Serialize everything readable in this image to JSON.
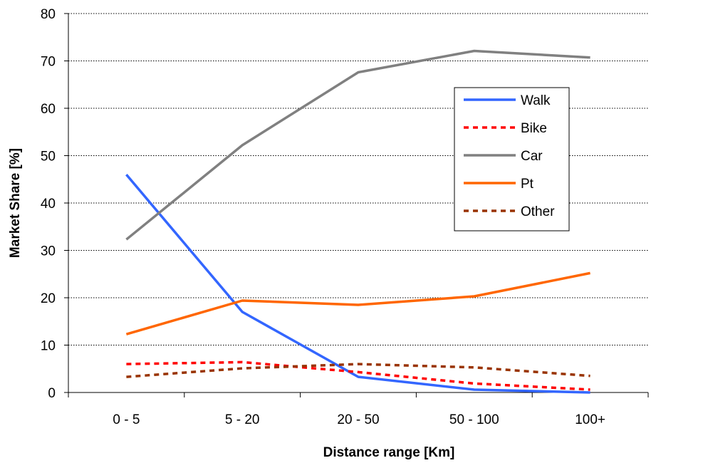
{
  "chart_data": {
    "type": "line",
    "title": "",
    "xlabel": "Distance range [Km]",
    "ylabel": "Market Share [%]",
    "categories": [
      "0 - 5",
      "5 - 20",
      "20 - 50",
      "50 - 100",
      "100+"
    ],
    "ylim": [
      0,
      80
    ],
    "yticks": [
      "0",
      "10",
      "20",
      "30",
      "40",
      "50",
      "60",
      "70",
      "80"
    ],
    "grid": "horizontal dotted",
    "legend_position": "top-right inside plot",
    "series": [
      {
        "name": "Walk",
        "values": [
          46.0,
          17.0,
          3.3,
          0.6,
          0.0
        ],
        "color": "#3366ff",
        "dash": "solid"
      },
      {
        "name": "Bike",
        "values": [
          6.0,
          6.4,
          4.3,
          1.9,
          0.6
        ],
        "color": "#ff0000",
        "dash": "dotted"
      },
      {
        "name": "Car",
        "values": [
          32.3,
          52.2,
          67.6,
          72.1,
          70.7
        ],
        "color": "#808080",
        "dash": "solid"
      },
      {
        "name": "Pt",
        "values": [
          12.3,
          19.4,
          18.5,
          20.3,
          25.2
        ],
        "color": "#ff6600",
        "dash": "solid"
      },
      {
        "name": "Other",
        "values": [
          3.3,
          5.1,
          6.0,
          5.3,
          3.5
        ],
        "color": "#993300",
        "dash": "dotted"
      }
    ]
  }
}
